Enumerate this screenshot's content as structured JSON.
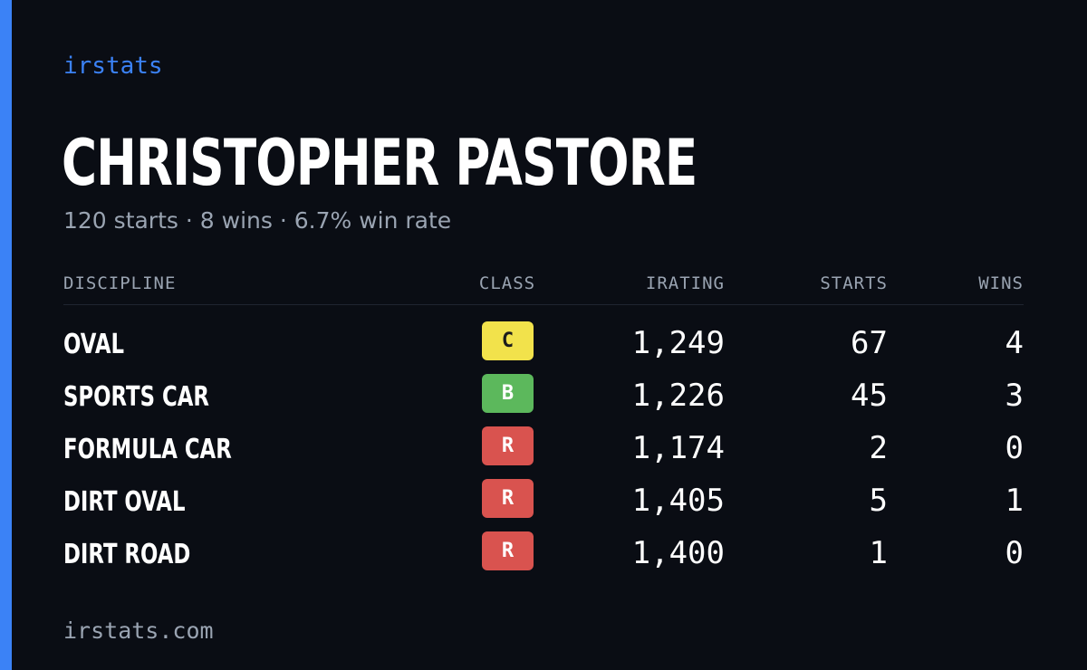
{
  "brand": "irstats",
  "driver": {
    "name": "CHRISTOPHER PASTORE",
    "summary": {
      "starts": "120 starts",
      "wins": "8 wins",
      "win_rate": "6.7% win rate",
      "separator": " · "
    }
  },
  "table": {
    "headers": {
      "discipline": "DISCIPLINE",
      "class": "CLASS",
      "irating": "IRATING",
      "starts": "STARTS",
      "wins": "WINS"
    },
    "rows": [
      {
        "discipline": "OVAL",
        "class": "C",
        "irating": "1,249",
        "starts": "67",
        "wins": "4"
      },
      {
        "discipline": "SPORTS CAR",
        "class": "B",
        "irating": "1,226",
        "starts": "45",
        "wins": "3"
      },
      {
        "discipline": "FORMULA CAR",
        "class": "R",
        "irating": "1,174",
        "starts": "2",
        "wins": "0"
      },
      {
        "discipline": "DIRT OVAL",
        "class": "R",
        "irating": "1,405",
        "starts": "5",
        "wins": "1"
      },
      {
        "discipline": "DIRT ROAD",
        "class": "R",
        "irating": "1,400",
        "starts": "1",
        "wins": "0"
      }
    ]
  },
  "class_colors": {
    "C": "#f2e24b",
    "B": "#5cb85c",
    "R": "#d9534f"
  },
  "colors": {
    "accent": "#3b82f6",
    "background": "#0a0d14",
    "muted": "#9aa4b2"
  },
  "footer": {
    "url": "irstats.com"
  }
}
